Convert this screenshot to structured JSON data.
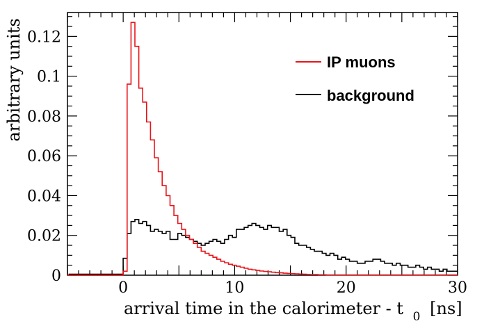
{
  "chart_data": {
    "type": "line",
    "xlabel_main": "arrival time in the calorimeter - t",
    "xlabel_sub": "0",
    "xlabel_unit": "[ns]",
    "ylabel": "arbitrary units",
    "xlim": [
      -5,
      30
    ],
    "ylim": [
      0,
      0.132
    ],
    "grid": false,
    "legend_position": "top-right",
    "x_ticks": [
      0,
      10,
      20,
      30
    ],
    "x_tick_labels": [
      "0",
      "10",
      "20",
      "30"
    ],
    "y_ticks": [
      0,
      0.02,
      0.04,
      0.06,
      0.08,
      0.1,
      0.12
    ],
    "y_tick_labels": [
      "0",
      "0.02",
      "0.04",
      "0.06",
      "0.08",
      "0.1",
      "0.12"
    ],
    "bin_width": 0.35,
    "series": [
      {
        "name": "IP muons",
        "color": "#e8141a",
        "x_start": 0.0,
        "values": [
          0.002,
          0.096,
          0.127,
          0.115,
          0.094,
          0.087,
          0.077,
          0.068,
          0.059,
          0.052,
          0.045,
          0.04,
          0.035,
          0.03,
          0.026,
          0.023,
          0.02,
          0.018,
          0.016,
          0.014,
          0.012,
          0.011,
          0.01,
          0.009,
          0.008,
          0.007,
          0.0062,
          0.0055,
          0.005,
          0.0045,
          0.004,
          0.0035,
          0.003,
          0.0027,
          0.0024,
          0.0021,
          0.0019,
          0.0017,
          0.0015,
          0.0013,
          0.0012,
          0.001,
          0.0009,
          0.0008,
          0.0007,
          0.0006,
          0.0005,
          0.0004,
          0.0003,
          0.0003,
          0.0002,
          0.0002,
          0.0001,
          0.0001,
          0.0001,
          0.0001,
          0.0001,
          0.0001,
          0.0001,
          0.0001,
          0.0001,
          0.0001,
          0.0001,
          0.0001,
          0.0001,
          0.0001,
          0.0001,
          0.0001,
          0.0001,
          0.0001,
          0.0001,
          0.0001,
          0.0001,
          0.0001,
          0.0001,
          0.0001,
          0.0001,
          0.0001,
          0.0001,
          0.0001,
          0.0001,
          0.0001,
          0.0001,
          0.0001,
          0.0001,
          0.0001
        ]
      },
      {
        "name": "background",
        "color": "#000000",
        "x_start": 0.0,
        "values": [
          0.0085,
          0.021,
          0.027,
          0.028,
          0.026,
          0.027,
          0.025,
          0.022,
          0.023,
          0.022,
          0.021,
          0.022,
          0.018,
          0.018,
          0.021,
          0.02,
          0.019,
          0.018,
          0.017,
          0.016,
          0.015,
          0.016,
          0.017,
          0.018,
          0.017,
          0.016,
          0.018,
          0.02,
          0.019,
          0.023,
          0.023,
          0.024,
          0.025,
          0.026,
          0.025,
          0.024,
          0.023,
          0.025,
          0.024,
          0.024,
          0.022,
          0.023,
          0.02,
          0.019,
          0.016,
          0.015,
          0.015,
          0.014,
          0.013,
          0.012,
          0.012,
          0.011,
          0.01,
          0.011,
          0.01,
          0.008,
          0.009,
          0.008,
          0.007,
          0.007,
          0.006,
          0.006,
          0.007,
          0.007,
          0.008,
          0.008,
          0.007,
          0.006,
          0.006,
          0.005,
          0.006,
          0.005,
          0.005,
          0.004,
          0.004,
          0.005,
          0.004,
          0.003,
          0.004,
          0.003,
          0.003,
          0.002,
          0.003,
          0.002,
          0.002,
          0.002
        ],
        "pre_values": [
          0.0005,
          0.0005,
          0.0005,
          0.0005,
          0.0005,
          0.0005,
          0.0005,
          0.0005,
          0.0005,
          0.0005,
          0.0005,
          0.0005,
          0.0005,
          0.0005
        ]
      }
    ]
  }
}
